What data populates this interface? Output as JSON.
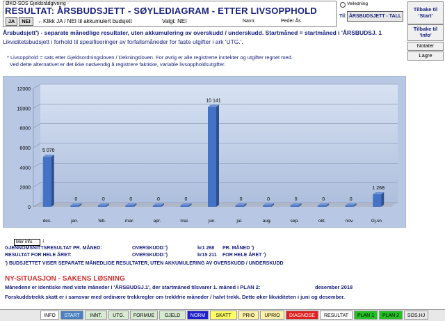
{
  "header": {
    "app_name": "ØKO-SOS Gjeldsrådgivning -",
    "title": "RESULTAT:  ÅRSBUDSJETT - SØYLEDIAGRAM - ETTER LIVSOPPHOLD",
    "ja_label": "JA",
    "nei_label": "NEI",
    "klikk_text": "←Klikk JA / NEI til akkumulert budsjett",
    "valgt_text": "Valgt: NEI",
    "navn_label": "Navn:",
    "navn_value": "Peder Ås"
  },
  "top_right": {
    "radio_label": "Veiledning",
    "til_label": "Til:",
    "tall_button": "ÅRSBUDSJETT - TALL"
  },
  "side_buttons": {
    "start": "Tilbake til 'Start'",
    "info": "Tilbake til 'Info'",
    "notater": "Notater",
    "lagre": "Lagre"
  },
  "intro": {
    "line1": "Årsbudsjett') - separate månedlige resultater, uten akkumulering av overskudd / underskudd. Startmåned = startmåned i 'ÅRSBUDSJ. 1",
    "line2": "Likviditetsbudsjett i forhold til spesifiseringer av forfallsmåneder for faste utgifter i ark 'UTG.'.",
    "line3": "* Livsopphold = sats etter Gjeldsordningsloven / Dekningsloven. For øvrig er alle registrerte inntekter og utgifter regnet med.",
    "line4": "Ved dette alternativet er det ikke nødvendig å registrere faktiske, variable livsoppholdsutgifter."
  },
  "chart_data": {
    "type": "bar",
    "categories": [
      "des.",
      "jan.",
      "feb.",
      "mar.",
      "apr.",
      "mai.",
      "jun.",
      "jul.",
      "aug.",
      "sep.",
      "okt.",
      "nov.",
      "Gj.sn."
    ],
    "values": [
      5070,
      0,
      0,
      0,
      0,
      0,
      10141,
      0,
      0,
      0,
      0,
      0,
      1268
    ],
    "data_labels": [
      "5 070",
      "0",
      "0",
      "0",
      "0",
      "0",
      "10 141",
      "0",
      "0",
      "0",
      "0",
      "0",
      "1 268"
    ],
    "y_ticks": [
      "0",
      "2000",
      "4000",
      "6000",
      "8000",
      "10000",
      "12000"
    ],
    "ylim": [
      0,
      12000
    ],
    "grid": true,
    "colors": {
      "bar": "#4472c4",
      "bar_side": "#2e4f8f",
      "bar_top": "#6f94d6",
      "bg": "#c6d4ea",
      "floor": "#b0b8c8"
    }
  },
  "more_info": "Mer info",
  "summary": {
    "row1_label": "GJENNOMSNITTSRESULTAT PR. MÅNED:",
    "row1_mid": "OVERSKUDD:')",
    "row1_amount": "kr1 268",
    "row1_suffix": "PR. MÅNED ')",
    "row2_label": "RESULTAT FOR HELE ÅRET:",
    "row2_mid": "OVERSKUDD:')",
    "row2_amount": "kr15 211",
    "row2_suffix": "FOR HELE ÅRET ')",
    "footnote": "') BUDSJETTET VISER SEPARATE MÅNEDLIGE RESULTATER, UTEN AKKUMULERING AV OVERSKUDD / UNDERSKUDD"
  },
  "ny_situasjon": {
    "title": "NY-SITUASJON - SAKENS LØSNING",
    "line1": "Månedene er identiske med viste måneder i 'ÅRSBUDSJ.1', der startmåned tilsvarer 1. måned i PLAN 2:",
    "date": "desember 2018",
    "line2": "Forskuddstrekk skatt er i samsvar med ordinære trekkregler om trekkfrie måneder / halvt trekk. Dette øker likviditeten i juni og desember."
  },
  "tabs": [
    {
      "label": "INFO",
      "bg": "#ffffff",
      "fg": "#000000"
    },
    {
      "label": "START",
      "bg": "#4a7fc1",
      "fg": "#ffffff"
    },
    {
      "label": "INNT.",
      "bg": "#d9ead3",
      "fg": "#000000"
    },
    {
      "label": "UTG.",
      "bg": "#d9ead3",
      "fg": "#000000"
    },
    {
      "label": "FORMUE",
      "bg": "#d9ead3",
      "fg": "#000000"
    },
    {
      "label": "GJELD",
      "bg": "#d9ead3",
      "fg": "#000000"
    },
    {
      "label": "NORM",
      "bg": "#1f1fcf",
      "fg": "#ffffff"
    },
    {
      "label": "SKATT",
      "bg": "#ffff66",
      "fg": "#000000"
    },
    {
      "label": "PRIO",
      "bg": "#fff2a8",
      "fg": "#000000"
    },
    {
      "label": "UPRIO",
      "bg": "#fff2a8",
      "fg": "#000000"
    },
    {
      "label": "DIAGNOSE",
      "bg": "#e02020",
      "fg": "#ffffff"
    },
    {
      "label": "RESULTAT",
      "bg": "#ffffff",
      "fg": "#000000"
    },
    {
      "label": "PLAN 1",
      "bg": "#22c022",
      "fg": "#000000"
    },
    {
      "label": "PLAN 2",
      "bg": "#22c022",
      "fg": "#000000"
    },
    {
      "label": "SOS.HJ",
      "bg": "#e8e8e8",
      "fg": "#000000"
    }
  ]
}
